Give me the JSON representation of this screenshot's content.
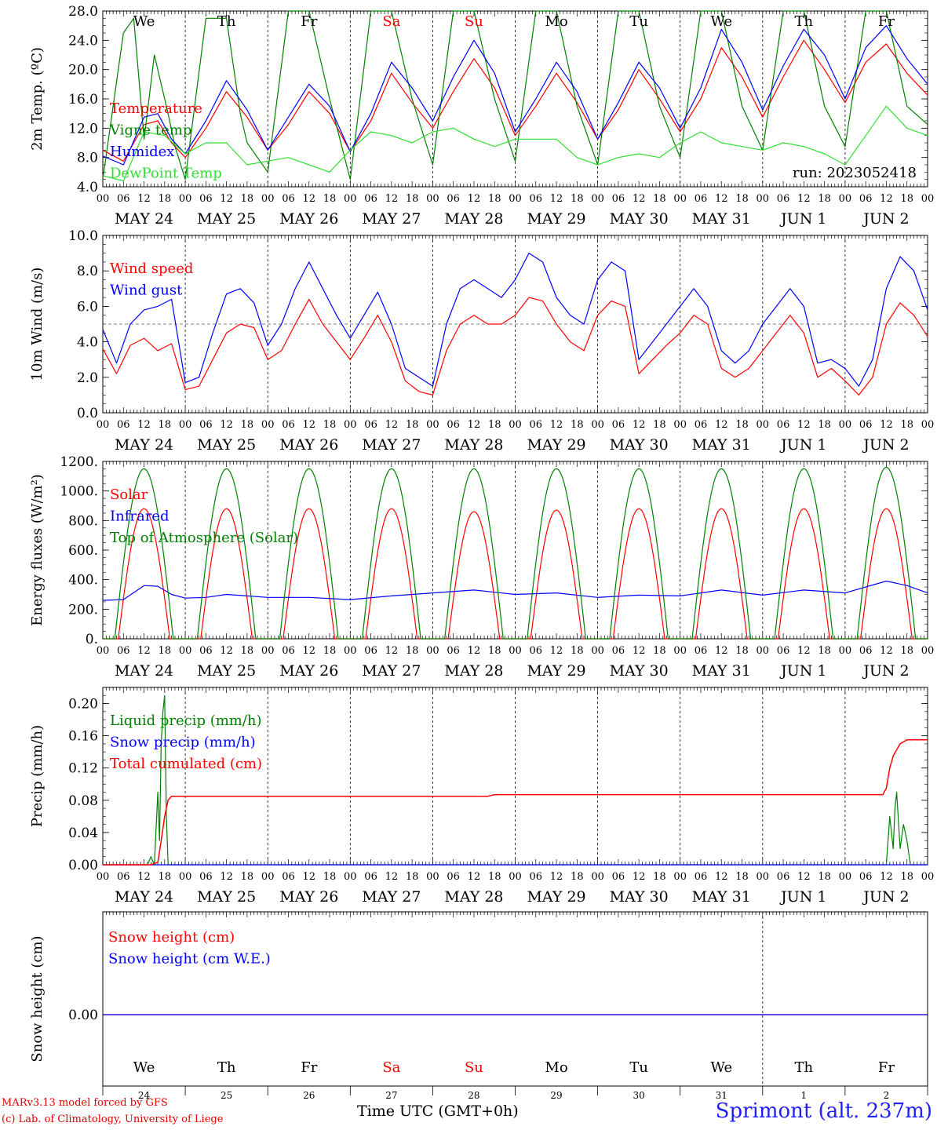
{
  "chart_data": [
    {
      "type": "line",
      "ylabel": "2m Temp. (ºC)",
      "ylim": [
        4.0,
        28.0
      ],
      "yticks": [
        "4.0",
        "8.0",
        "12.0",
        "16.0",
        "20.0",
        "24.0",
        "28.0"
      ],
      "weekdays": [
        "We",
        "Th",
        "Fr",
        "Sa",
        "Su",
        "Mo",
        "Tu",
        "We",
        "Th",
        "Fr"
      ],
      "annotation": "run: 2023052418",
      "grid": "vertical dashed at midnight",
      "legend_placement": "left",
      "x_unit": "hours since 2023-05-24 00 UTC",
      "series": [
        {
          "name": "Temperature",
          "color": "#ff0000",
          "x": [
            0,
            6,
            12,
            16,
            20,
            24,
            30,
            36,
            42,
            48,
            54,
            60,
            66,
            72,
            78,
            84,
            90,
            96,
            102,
            108,
            114,
            120,
            126,
            132,
            138,
            144,
            150,
            156,
            162,
            168,
            174,
            180,
            186,
            192,
            198,
            204,
            210,
            216,
            222,
            228,
            234,
            240
          ],
          "values": [
            9.0,
            7.5,
            12.5,
            13.0,
            10.0,
            8.0,
            12.0,
            17.0,
            13.5,
            9.0,
            12.5,
            17.0,
            14.0,
            8.8,
            13.0,
            19.5,
            15.5,
            12.0,
            17.0,
            21.5,
            17.5,
            11.0,
            15.0,
            19.5,
            15.5,
            10.5,
            14.5,
            20.0,
            16.0,
            11.5,
            16.0,
            23.0,
            19.0,
            13.5,
            19.0,
            24.0,
            20.0,
            15.5,
            21.0,
            23.5,
            19.5,
            16.5
          ]
        },
        {
          "name": "Vigne temp",
          "color": "#008000",
          "x": [
            0,
            6,
            9,
            12,
            15,
            17,
            19,
            21,
            24,
            30,
            36,
            40,
            42,
            48,
            54,
            60,
            66,
            72,
            78,
            84,
            90,
            96,
            102,
            108,
            114,
            120,
            126,
            132,
            138,
            144,
            150,
            156,
            162,
            168,
            174,
            180,
            186,
            192,
            198,
            204,
            210,
            216,
            222,
            228,
            234,
            240
          ],
          "values": [
            5.0,
            25.0,
            27.0,
            10.5,
            22.0,
            18.0,
            14.0,
            9.5,
            5.0,
            27.0,
            27.0,
            14.0,
            10.0,
            6.0,
            28.0,
            28.0,
            16.0,
            5.0,
            28.0,
            28.0,
            16.0,
            7.0,
            28.0,
            28.0,
            16.0,
            7.5,
            28.0,
            28.0,
            15.0,
            7.0,
            28.0,
            28.0,
            15.0,
            8.0,
            28.0,
            28.0,
            15.0,
            9.0,
            28.0,
            28.0,
            15.0,
            9.5,
            28.0,
            28.0,
            15.0,
            12.5
          ]
        },
        {
          "name": "Humidex",
          "color": "#0000ff",
          "x": [
            0,
            6,
            12,
            16,
            20,
            24,
            30,
            36,
            42,
            48,
            54,
            60,
            66,
            72,
            78,
            84,
            90,
            96,
            102,
            108,
            114,
            120,
            126,
            132,
            138,
            144,
            150,
            156,
            162,
            168,
            174,
            180,
            186,
            192,
            198,
            204,
            210,
            216,
            222,
            228,
            234,
            240
          ],
          "values": [
            8.2,
            7.0,
            13.5,
            14.0,
            10.5,
            8.5,
            13.0,
            18.5,
            14.5,
            9.0,
            13.5,
            18.0,
            15.0,
            8.8,
            14.0,
            21.0,
            17.5,
            13.0,
            19.0,
            24.0,
            19.5,
            11.5,
            16.0,
            21.0,
            17.0,
            10.5,
            15.5,
            21.0,
            17.5,
            12.0,
            17.5,
            25.5,
            21.0,
            14.5,
            20.5,
            25.5,
            22.0,
            16.0,
            23.0,
            26.0,
            21.5,
            18.0
          ]
        },
        {
          "name": "DewPoint Temp",
          "color": "#33dd33",
          "x": [
            0,
            6,
            12,
            18,
            24,
            30,
            36,
            42,
            48,
            54,
            60,
            66,
            72,
            78,
            84,
            90,
            96,
            102,
            108,
            114,
            120,
            126,
            132,
            138,
            144,
            150,
            156,
            162,
            168,
            174,
            180,
            186,
            192,
            198,
            204,
            210,
            216,
            222,
            228,
            234,
            240
          ],
          "values": [
            5.5,
            4.8,
            11.5,
            11.0,
            8.5,
            10.0,
            10.0,
            7.0,
            7.5,
            8.0,
            7.0,
            6.0,
            9.0,
            11.5,
            11.0,
            10.0,
            11.5,
            12.0,
            10.5,
            9.5,
            10.5,
            10.5,
            10.5,
            8.0,
            7.0,
            8.0,
            8.5,
            8.0,
            10.0,
            11.5,
            10.0,
            9.5,
            9.0,
            10.0,
            9.5,
            8.5,
            7.0,
            11.0,
            15.0,
            12.0,
            11.0
          ]
        }
      ]
    },
    {
      "type": "line",
      "ylabel": "10m Wind (m/s)",
      "ylim": [
        0.0,
        10.0
      ],
      "yticks": [
        "0.0",
        "2.0",
        "4.0",
        "6.0",
        "8.0",
        "10.0"
      ],
      "hline": 5.0,
      "grid": "vertical dashed at midnight",
      "legend_placement": "left",
      "x_unit": "hours since 2023-05-24 00 UTC",
      "series": [
        {
          "name": "Wind speed",
          "color": "#ff0000",
          "x": [
            0,
            4,
            8,
            12,
            16,
            20,
            24,
            28,
            32,
            36,
            40,
            44,
            48,
            52,
            56,
            60,
            64,
            68,
            72,
            76,
            80,
            84,
            88,
            92,
            96,
            100,
            104,
            108,
            112,
            116,
            120,
            124,
            128,
            132,
            136,
            140,
            144,
            148,
            152,
            156,
            160,
            164,
            168,
            172,
            176,
            180,
            184,
            188,
            192,
            196,
            200,
            204,
            208,
            212,
            216,
            220,
            224,
            228,
            232,
            236,
            240
          ],
          "values": [
            3.6,
            2.2,
            3.8,
            4.2,
            3.5,
            3.9,
            1.3,
            1.5,
            3.0,
            4.5,
            5.0,
            4.8,
            3.0,
            3.5,
            5.0,
            6.4,
            5.0,
            4.0,
            3.0,
            4.2,
            5.5,
            4.0,
            1.8,
            1.2,
            1.0,
            3.5,
            5.0,
            5.5,
            5.0,
            5.0,
            5.5,
            6.5,
            6.3,
            5.0,
            4.0,
            3.5,
            5.5,
            6.3,
            6.0,
            2.2,
            3.0,
            3.8,
            4.5,
            5.5,
            5.0,
            2.5,
            2.0,
            2.5,
            3.5,
            4.5,
            5.5,
            4.5,
            2.0,
            2.5,
            1.8,
            1.0,
            2.0,
            5.0,
            6.2,
            5.5,
            4.3
          ]
        },
        {
          "name": "Wind gust",
          "color": "#0000ff",
          "x": [
            0,
            4,
            8,
            12,
            16,
            20,
            24,
            28,
            32,
            36,
            40,
            44,
            48,
            52,
            56,
            60,
            64,
            68,
            72,
            76,
            80,
            84,
            88,
            92,
            96,
            100,
            104,
            108,
            112,
            116,
            120,
            124,
            128,
            132,
            136,
            140,
            144,
            148,
            152,
            156,
            160,
            164,
            168,
            172,
            176,
            180,
            184,
            188,
            192,
            196,
            200,
            204,
            208,
            212,
            216,
            220,
            224,
            228,
            232,
            236,
            240
          ],
          "values": [
            4.7,
            2.8,
            5.0,
            5.8,
            6.0,
            6.4,
            1.7,
            2.0,
            4.5,
            6.7,
            7.0,
            6.2,
            3.8,
            5.0,
            7.0,
            8.5,
            7.0,
            5.5,
            4.2,
            5.5,
            6.8,
            5.0,
            2.5,
            2.0,
            1.5,
            5.0,
            7.0,
            7.5,
            7.0,
            6.5,
            7.5,
            9.0,
            8.5,
            6.5,
            5.5,
            5.0,
            7.5,
            8.5,
            8.0,
            3.0,
            4.0,
            5.0,
            6.0,
            7.0,
            6.0,
            3.5,
            2.8,
            3.5,
            5.0,
            6.0,
            7.0,
            6.0,
            2.8,
            3.0,
            2.5,
            1.5,
            3.0,
            7.0,
            8.8,
            8.0,
            5.8
          ]
        }
      ]
    },
    {
      "type": "line",
      "ylabel": "Energy fluxes (W/m²)",
      "ylim": [
        0,
        1200
      ],
      "yticks": [
        "0.",
        "200.",
        "400.",
        "600.",
        "800.",
        "1000.",
        "1200."
      ],
      "grid": "vertical dashed at midnight",
      "legend_placement": "left",
      "x_unit": "hours since 2023-05-24 00 UTC",
      "series": [
        {
          "name": "Solar",
          "color": "#ff0000",
          "daily_peak": [
            880,
            880,
            880,
            880,
            860,
            870,
            880,
            880,
            880,
            880
          ],
          "daylight_hours": [
            4.5,
            19.5
          ]
        },
        {
          "name": "Infrared",
          "color": "#0000ff",
          "x": [
            0,
            6,
            12,
            16,
            20,
            24,
            30,
            36,
            42,
            48,
            60,
            72,
            84,
            96,
            108,
            120,
            132,
            144,
            156,
            168,
            180,
            192,
            204,
            216,
            228,
            234,
            240
          ],
          "values": [
            260,
            265,
            360,
            355,
            300,
            275,
            280,
            300,
            290,
            280,
            280,
            265,
            290,
            310,
            330,
            300,
            310,
            280,
            295,
            290,
            330,
            295,
            330,
            310,
            390,
            360,
            310
          ]
        },
        {
          "name": "Top of Atmosphere (Solar)",
          "color": "#008000",
          "daily_peak": [
            1150,
            1150,
            1150,
            1150,
            1150,
            1150,
            1150,
            1150,
            1150,
            1160
          ],
          "daylight_hours": [
            3.5,
            20.5
          ]
        }
      ]
    },
    {
      "type": "line",
      "ylabel": "Precip (mm/h)",
      "ylim": [
        0.0,
        0.22
      ],
      "yticks": [
        "0.00",
        "0.04",
        "0.08",
        "0.12",
        "0.16",
        "0.20"
      ],
      "grid": "vertical dashed at midnight",
      "legend_placement": "left",
      "x_unit": "hours since 2023-05-24 00 UTC",
      "series": [
        {
          "name": "Liquid precip (mm/h)",
          "color": "#008000",
          "x": [
            0,
            13,
            14,
            15,
            16,
            16.5,
            17,
            17.5,
            18,
            18.5,
            19,
            20,
            120,
            228,
            229,
            230,
            230.5,
            231,
            232,
            233,
            234,
            235,
            240
          ],
          "values": [
            0,
            0,
            0.01,
            0,
            0.09,
            0.03,
            0.15,
            0.19,
            0.21,
            0.06,
            0.0,
            0,
            0,
            0,
            0.06,
            0.02,
            0.07,
            0.09,
            0.02,
            0.05,
            0.03,
            0,
            0
          ]
        },
        {
          "name": "Snow precip (mm/h)",
          "color": "#0000ff",
          "x": [
            0,
            240
          ],
          "values": [
            0,
            0
          ]
        },
        {
          "name": "Total cumulated (cm)",
          "color": "#ff0000",
          "x": [
            0,
            14,
            16,
            17,
            18,
            19,
            20,
            112,
            114,
            227,
            228,
            229,
            230,
            232,
            234,
            240
          ],
          "values": [
            0,
            0,
            0.003,
            0.03,
            0.06,
            0.08,
            0.085,
            0.085,
            0.087,
            0.087,
            0.095,
            0.12,
            0.135,
            0.15,
            0.155,
            0.155
          ]
        }
      ]
    },
    {
      "type": "line",
      "ylabel": "Snow height (cm)",
      "yticks": [
        "0.00"
      ],
      "weekdays": [
        "We",
        "Th",
        "Fr",
        "Sa",
        "Su",
        "Mo",
        "Tu",
        "We",
        "Th",
        "Fr"
      ],
      "daynums": [
        "24",
        "25",
        "26",
        "27",
        "28",
        "29",
        "30",
        "31",
        "1",
        "2"
      ],
      "legend_placement": "left",
      "series": [
        {
          "name": "Snow height (cm)",
          "color": "#ff0000",
          "x": [
            0,
            240
          ],
          "values": [
            0,
            0
          ]
        },
        {
          "name": "Snow height (cm W.E.)",
          "color": "#0000ff",
          "x": [
            0,
            240
          ],
          "values": [
            0,
            0
          ]
        }
      ]
    }
  ],
  "axis": {
    "hour_labels": [
      "00",
      "06",
      "12",
      "18"
    ],
    "end_label": "00",
    "day_labels": [
      "MAY 24",
      "MAY 25",
      "MAY 26",
      "MAY 27",
      "MAY 28",
      "MAY 29",
      "MAY 30",
      "MAY 31",
      "JUN  1",
      "JUN  2"
    ]
  },
  "colors": {
    "weekend": "#ff0000",
    "weekday": "#000000",
    "grid": "#000000"
  },
  "footer": {
    "credit_line1": "MARv3.13 model forced by GFS",
    "credit_line2": "(c) Lab. of Climatology, University of Liege",
    "xlabel": "Time UTC (GMT+0h)",
    "station": "Sprimont (alt. 237m)"
  }
}
